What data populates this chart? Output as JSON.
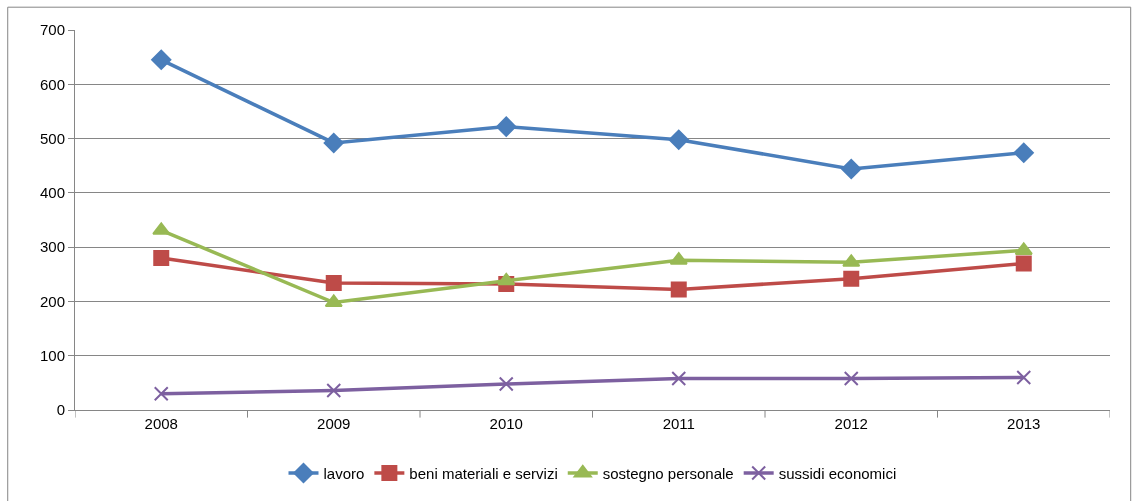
{
  "chart_data": {
    "type": "line",
    "categories": [
      "2008",
      "2009",
      "2010",
      "2011",
      "2012",
      "2013"
    ],
    "series": [
      {
        "name": "lavoro",
        "color": "#4a7ebb",
        "marker": "diamond",
        "values": [
          645,
          492,
          522,
          498,
          444,
          474
        ]
      },
      {
        "name": "beni materiali e servizi",
        "color": "#be4b48",
        "marker": "square",
        "values": [
          280,
          234,
          232,
          222,
          242,
          270
        ]
      },
      {
        "name": "sostegno personale",
        "color": "#98b954",
        "marker": "triangle",
        "values": [
          331,
          198,
          238,
          276,
          272,
          294
        ]
      },
      {
        "name": "sussidi economici",
        "color": "#7d60a0",
        "marker": "cross",
        "values": [
          30,
          36,
          48,
          58,
          58,
          60
        ]
      }
    ],
    "ylim": [
      0,
      700
    ],
    "yticks": [
      0,
      100,
      200,
      300,
      400,
      500,
      600,
      700
    ],
    "grid": "y",
    "legend": "bottom",
    "line_style": "solid"
  }
}
